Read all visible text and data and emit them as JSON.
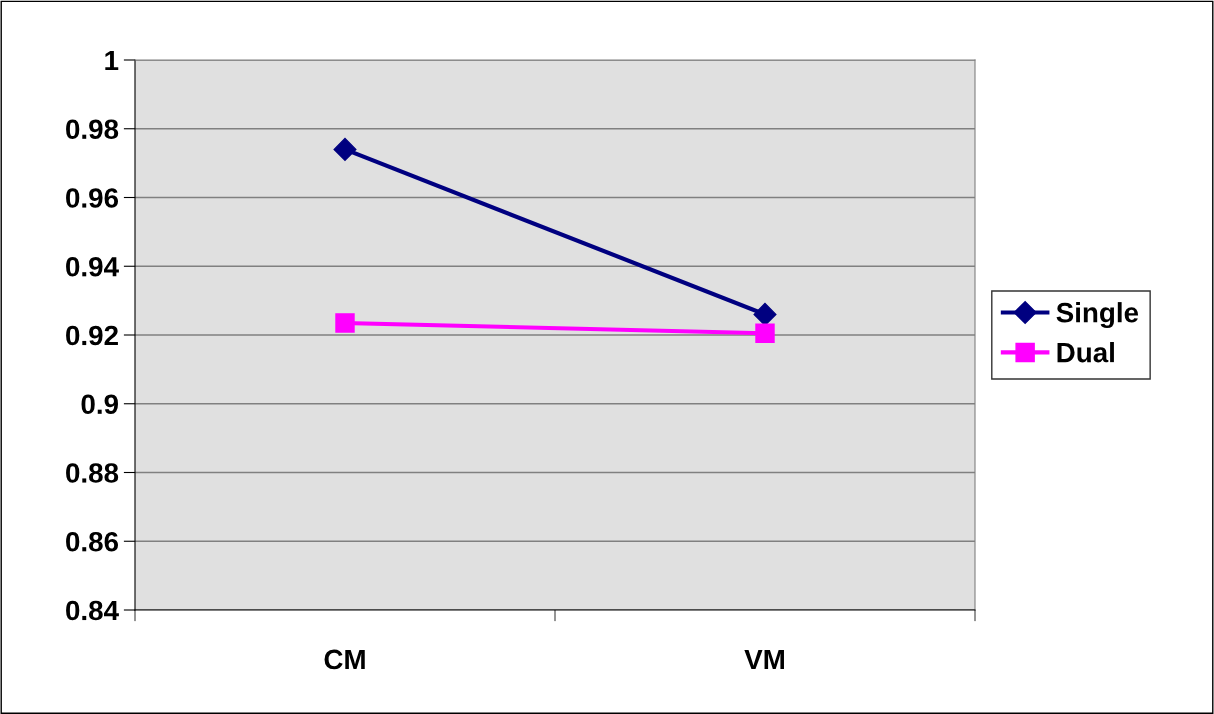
{
  "chart_data": {
    "type": "line",
    "categories": [
      "CM",
      "VM"
    ],
    "series": [
      {
        "name": "Single",
        "color": "#000080",
        "values": [
          0.974,
          0.926
        ],
        "marker": "diamond"
      },
      {
        "name": "Dual",
        "color": "#ff00ff",
        "values": [
          0.9235,
          0.9205
        ],
        "marker": "square"
      }
    ],
    "ylim": [
      0.84,
      1
    ],
    "yticks": [
      0.84,
      0.86,
      0.88,
      0.9,
      0.92,
      0.94,
      0.96,
      0.98,
      1
    ],
    "grid": "y",
    "legend": "right",
    "line_style": "solid"
  }
}
